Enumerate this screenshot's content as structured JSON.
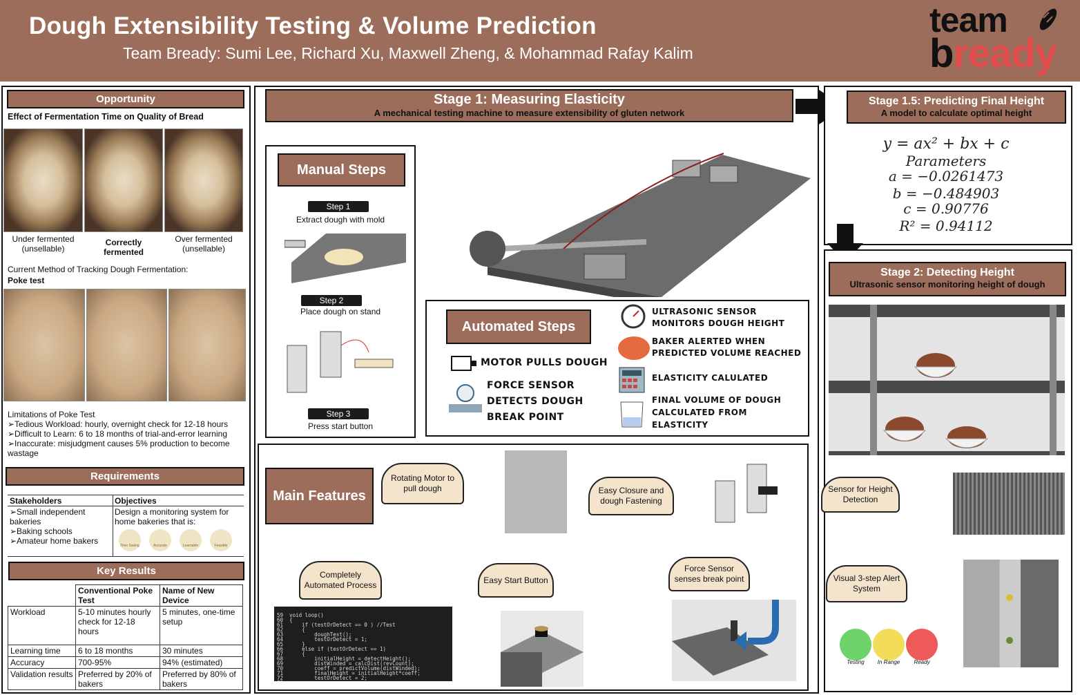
{
  "header": {
    "title": "Dough Extensibility Testing & Volume Prediction",
    "subtitle": "Team Bready: Sumi Lee, Richard Xu, Maxwell Zheng, & Mohammad Rafay Kalim",
    "logo_line1": "team",
    "logo_line2_a": "b",
    "logo_line2_b": "ready"
  },
  "opportunity": {
    "heading": "Opportunity",
    "effect_title": "Effect of Fermentation Time on Quality of Bread",
    "under": "Under fermented\n(unsellable)",
    "correct": "Correctly\nfermented",
    "over": "Over fermented\n(unsellable)",
    "current_method": "Current Method of Tracking Dough Fermentation:",
    "poke_test": "Poke test",
    "limitations_title": "Limitations of Poke Test",
    "lim1": "➢Tedious Workload: hourly, overnight check for 12-18 hours",
    "lim2": "➢Difficult to Learn: 6 to 18 months of trial-and-error learning",
    "lim3": "➢Inaccurate: misjudgment causes 5% production to become wastage"
  },
  "requirements": {
    "heading": "Requirements",
    "col1": "Stakeholders",
    "col2": "Objectives",
    "s1": "➢Small independent bakeries",
    "s2": "➢Baking schools",
    "s3": "➢Amateur home bakers",
    "objective": "Design a monitoring system for home bakeries that is:",
    "icons": [
      "Time Saving",
      "Accurate",
      "Learnable",
      "Feasible"
    ]
  },
  "key_results": {
    "heading": "Key Results",
    "headers": [
      "",
      "Conventional Poke Test",
      "Name of New Device"
    ],
    "rows": [
      [
        "Workload",
        "5-10 minutes hourly check for 12-18 hours",
        "5 minutes, one-time setup"
      ],
      [
        "Learning time",
        "6 to 18 months",
        "30 minutes"
      ],
      [
        "Accuracy",
        "700-95%",
        "94% (estimated)"
      ],
      [
        "Validation results",
        "Preferred by 20% of bakers",
        "Preferred by 80% of bakers"
      ]
    ]
  },
  "stage1": {
    "title": "Stage 1: Measuring Elasticity",
    "desc": "A mechanical testing machine to measure extensibility of gluten network"
  },
  "manual": {
    "heading": "Manual Steps",
    "step1": "Step 1",
    "step1_desc": "Extract dough with mold",
    "step2": "Step 2",
    "step2_desc": "Place dough on stand",
    "step3": "Step 3",
    "step3_desc": "Press start button"
  },
  "automated": {
    "heading": "Automated Steps",
    "motor": "Motor pulls dough",
    "force": "Force sensor detects dough break point",
    "ultra": "Ultrasonic sensor monitors dough height",
    "baker": "Baker alerted when predicted volume reached",
    "elasticity": "Elasticity calulated",
    "final": "Final volume of dough calculated from elasticity"
  },
  "stage15": {
    "title": "Stage 1.5: Predicting Final Height",
    "desc": "A model to calculate optimal height",
    "eq": "y = ax² + bx + c",
    "params": "Parameters",
    "a": "a = −0.0261473",
    "b": "b = −0.484903",
    "c": "c = 0.90776",
    "r2": "R² = 0.94112"
  },
  "stage2": {
    "title": "Stage 2: Detecting Height",
    "desc": "Ultrasonic sensor monitoring height of dough"
  },
  "features": {
    "heading": "Main Features",
    "f1": "Rotating Motor to pull dough",
    "f2": "Easy Closure and dough Fastening",
    "f3": "Sensor for Height Detection",
    "f4": "Completely Automated Process",
    "f5": "Easy Start Button",
    "f6": "Force Sensor senses break point",
    "f7": "Visual 3-step Alert System",
    "alert_labels": [
      "Testing",
      "In Range",
      "Ready"
    ]
  },
  "code": {
    "lines": [
      "59  void loop()",
      "60  {",
      "61      if (testOrDetect == 0 ) //Test",
      "62      {",
      "63          doughTest();",
      "64          testOrDetect = 1;",
      "65      }",
      "66      else if (testOrDetect == 1)",
      "67      {",
      "68          initialHeight = detectHeight();",
      "69          distWinded = calcDist(revCount);",
      "70          coeff = predictVolume(distWinded);",
      "71          finalHeight = initialHeight*coeff;",
      "72          testOrDetect = 2;",
      "73"
    ]
  },
  "colors": {
    "brand": "#9b6d5a",
    "green": "#6ed36a",
    "yellow": "#f3dc5a",
    "red": "#ee5a5a"
  }
}
